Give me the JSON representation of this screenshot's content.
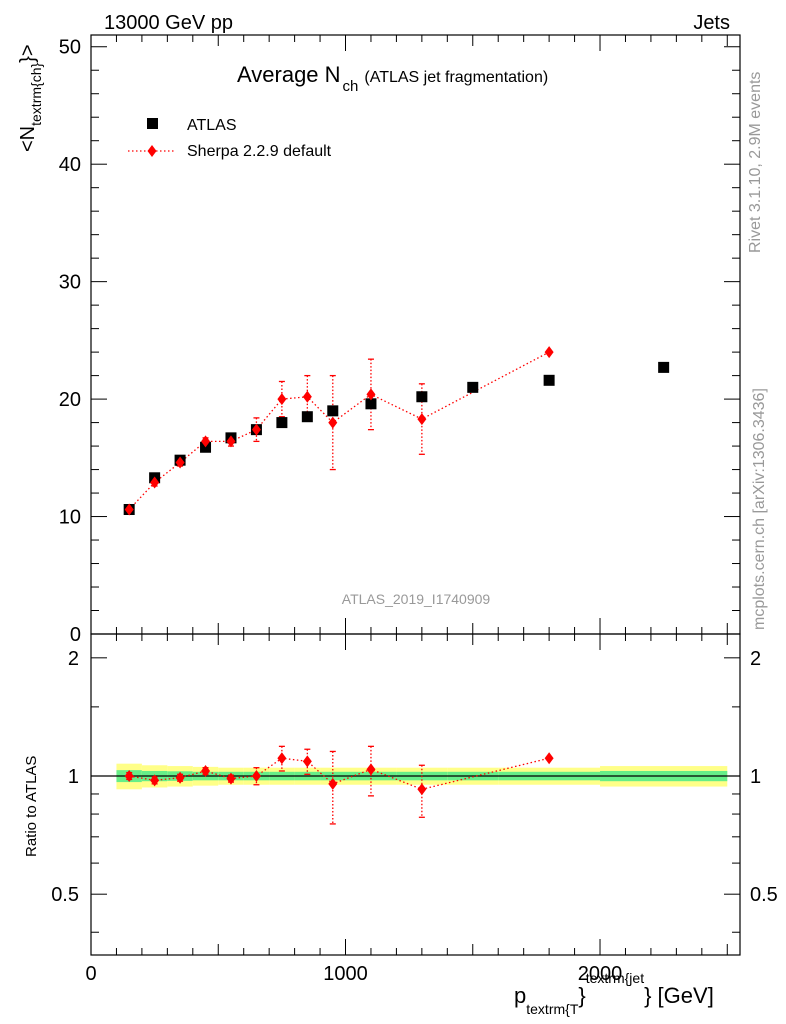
{
  "header": {
    "left": "13000 GeV pp",
    "right": "Jets"
  },
  "side": {
    "rivet": "Rivet 3.1.10,  2.9M events",
    "mcplots": "mcplots.cern.ch [arXiv:1306.3436]"
  },
  "title": {
    "main": "Average N",
    "sub": "ch",
    "note": "(ATLAS jet fragmentation)"
  },
  "analysis_id": "ATLAS_2019_I1740909",
  "ylabel_main": {
    "a": "<N",
    "b": "textrm{ch}",
    "c": "}>"
  },
  "ylabel_ratio": "Ratio to ATLAS",
  "xlabel": {
    "p": "p",
    "sub": "textrm{T",
    "close": "}",
    "sup": "textrm{jet",
    "unit": "} [GeV]"
  },
  "colors": {
    "data": "#000000",
    "mc": "#ff0000",
    "band_inner": "#66ee88",
    "band_outer": "#ffff88"
  },
  "chart_data": [
    {
      "type": "scatter",
      "panel": "main",
      "title": "Average N_ch (ATLAS jet fragmentation)",
      "xlabel": "p_T^jet [GeV]",
      "ylabel": "<N_ch>",
      "xlim": [
        0,
        2550
      ],
      "ylim": [
        0,
        51
      ],
      "yticks": [
        "10",
        "20",
        "30",
        "40",
        "50"
      ],
      "ytick_zero": "0",
      "legend_position": "top-left",
      "series": [
        {
          "name": "ATLAS",
          "marker": "square",
          "x": [
            150,
            250,
            350,
            450,
            550,
            650,
            750,
            850,
            950,
            1100,
            1300,
            1500,
            1800,
            2250
          ],
          "y": [
            10.6,
            13.3,
            14.8,
            15.9,
            16.7,
            17.4,
            18.0,
            18.5,
            19.0,
            19.6,
            20.2,
            21.0,
            21.6,
            22.7
          ]
        },
        {
          "name": "Sherpa 2.2.9 default",
          "marker": "diamond",
          "line": "dotted",
          "x": [
            150,
            250,
            350,
            450,
            550,
            650,
            750,
            850,
            950,
            1100,
            1300,
            1800
          ],
          "y": [
            10.6,
            12.9,
            14.6,
            16.4,
            16.4,
            17.4,
            20.0,
            20.2,
            18.0,
            20.4,
            18.3,
            24.0
          ],
          "err": [
            0.3,
            0.3,
            0.3,
            0.3,
            0.4,
            1.0,
            1.5,
            1.8,
            4.0,
            3.0,
            3.0,
            0.0
          ]
        }
      ]
    },
    {
      "type": "scatter",
      "panel": "ratio",
      "ylabel": "Ratio to ATLAS",
      "xlim": [
        0,
        2550
      ],
      "ylim": [
        0.35,
        2.3
      ],
      "yticks": [
        "0.5",
        "1",
        "2"
      ],
      "xticks": [
        "0",
        "1000",
        "2000"
      ],
      "band_x": [
        100,
        200,
        300,
        400,
        500,
        600,
        700,
        800,
        900,
        1000,
        1200,
        1400,
        1600,
        2000,
        2500
      ],
      "band_outer": [
        0.075,
        0.065,
        0.06,
        0.055,
        0.05,
        0.05,
        0.05,
        0.05,
        0.05,
        0.05,
        0.05,
        0.05,
        0.05,
        0.06
      ],
      "band_inner": [
        0.035,
        0.03,
        0.028,
        0.025,
        0.025,
        0.025,
        0.025,
        0.025,
        0.025,
        0.025,
        0.025,
        0.025,
        0.025,
        0.03
      ],
      "series": [
        {
          "name": "Sherpa 2.2.9 default",
          "x": [
            150,
            250,
            350,
            450,
            550,
            650,
            750,
            850,
            950,
            1100,
            1300,
            1800
          ],
          "y": [
            1.0,
            0.975,
            0.99,
            1.03,
            0.985,
            1.0,
            1.11,
            1.09,
            0.955,
            1.04,
            0.925,
            1.11
          ],
          "err": [
            0.02,
            0.02,
            0.02,
            0.02,
            0.02,
            0.05,
            0.08,
            0.08,
            0.2,
            0.15,
            0.14,
            0.0
          ]
        }
      ]
    }
  ]
}
